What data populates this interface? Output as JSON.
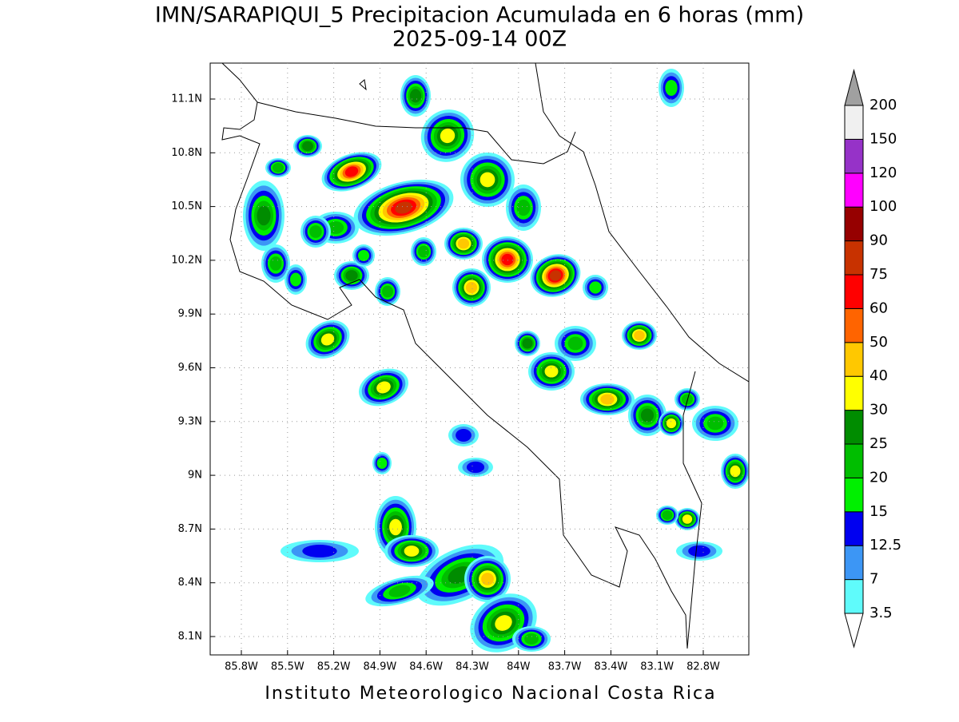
{
  "title": "IMN/SARAPIQUI_5 Precipitacion Acumulada en 6 horas (mm)",
  "subtitle": "2025-09-14 00Z",
  "lat_labels": [
    "11.1N",
    "10.8N",
    "10.5N",
    "10.2N",
    "9.9N",
    "9.6N",
    "9.3N",
    "9N",
    "8.7N",
    "8.4N",
    "8.1N"
  ],
  "lon_labels": [
    "85.8W",
    "85.5W",
    "85.2W",
    "84.9W",
    "84.6W",
    "84.3W",
    "84W",
    "83.7W",
    "83.4W",
    "83.1W",
    "82.8W"
  ],
  "colorbar": {
    "levels": [
      3.5,
      7,
      12.5,
      15,
      20,
      25,
      30,
      40,
      50,
      60,
      75,
      90,
      100,
      120,
      150,
      200
    ],
    "colors": [
      "#5ffbfb",
      "#3c96f5",
      "#0000f0",
      "#00f000",
      "#00be00",
      "#008c00",
      "#ffff00",
      "#ffc800",
      "#ff6400",
      "#ff0000",
      "#c83200",
      "#960000",
      "#ff00ff",
      "#9632c8",
      "#f0f0f0"
    ],
    "under_color": "#ffffff",
    "over_color": "#a0a0a0"
  },
  "footer": "Instituto Meteorologico Nacional Costa Rica"
}
